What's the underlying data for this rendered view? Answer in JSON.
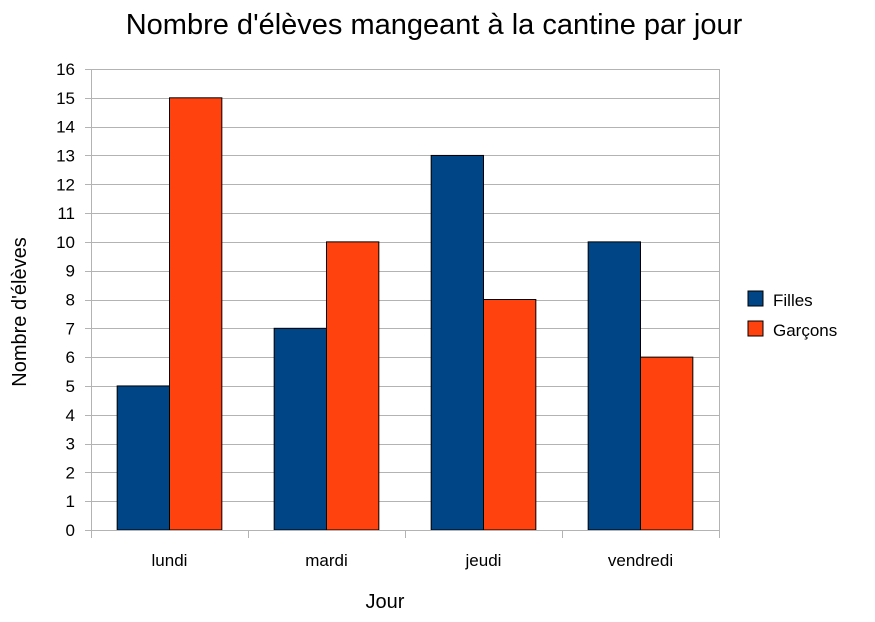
{
  "chart_data": {
    "type": "bar",
    "title": "Nombre d'élèves mangeant à la cantine par jour",
    "xlabel": "Jour",
    "ylabel": "Nombre d'élèves",
    "categories": [
      "lundi",
      "mardi",
      "jeudi",
      "vendredi"
    ],
    "series": [
      {
        "name": "Filles",
        "values": [
          5,
          7,
          13,
          10
        ],
        "color": "#004586"
      },
      {
        "name": "Garçons",
        "values": [
          15,
          10,
          8,
          6
        ],
        "color": "#FF420E"
      }
    ],
    "ylim": [
      0,
      16
    ],
    "ytick_step": 1,
    "grid": true,
    "legend_position": "right"
  }
}
